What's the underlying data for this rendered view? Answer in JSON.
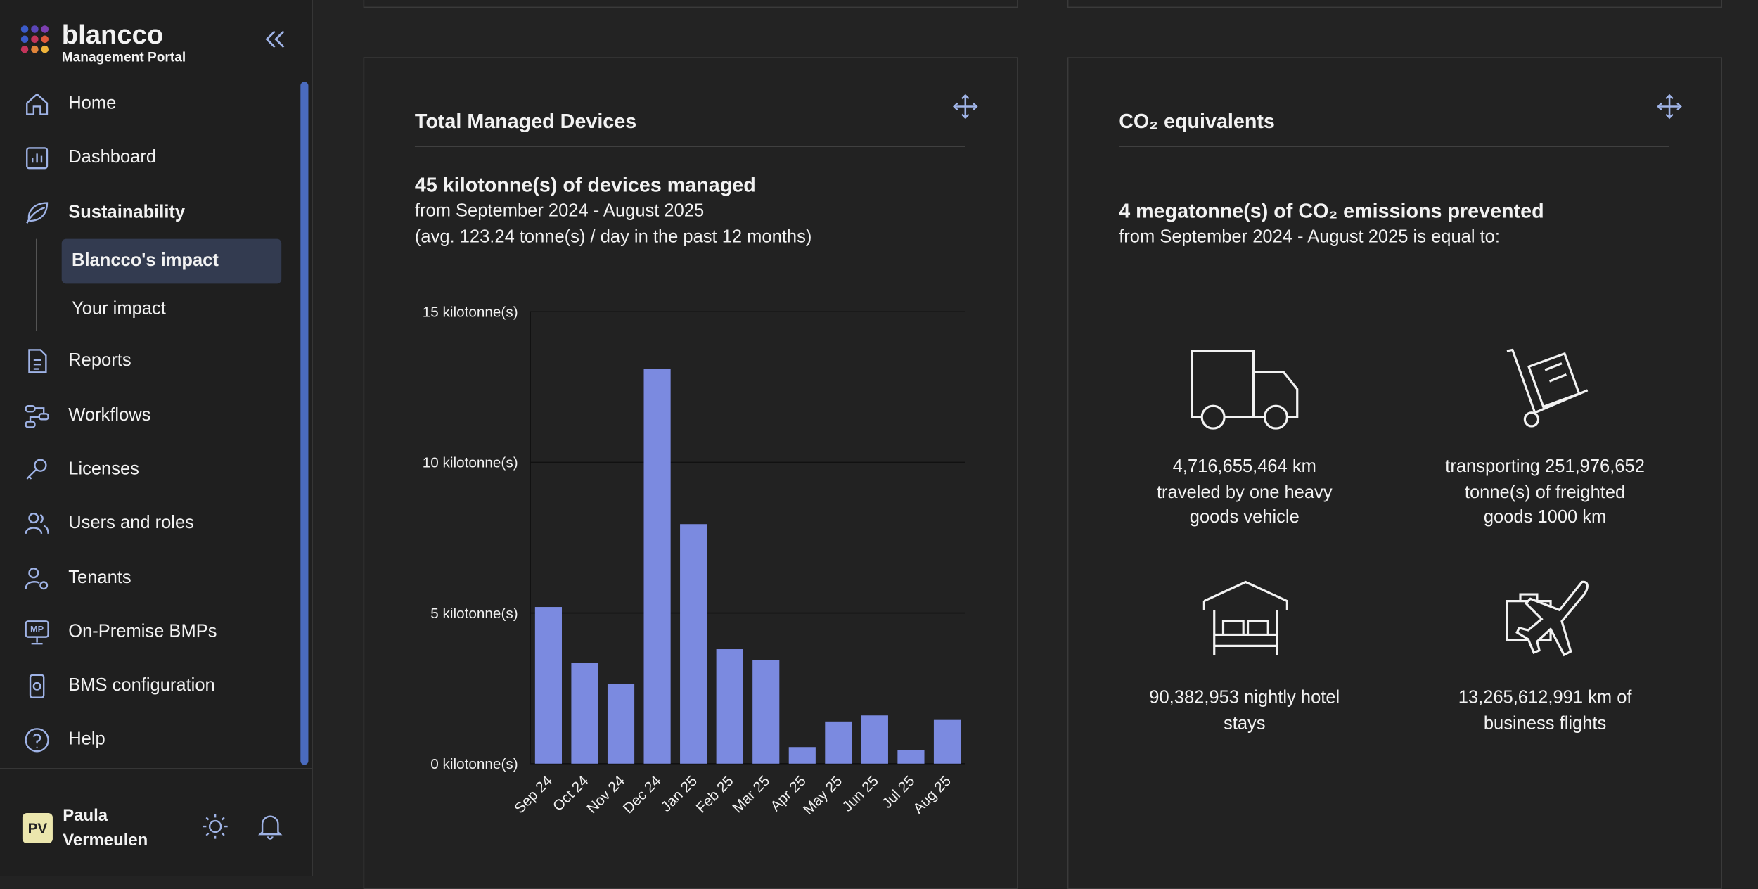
{
  "sidebar": {
    "brand": "blancco",
    "brand_subtitle": "Management Portal",
    "nav": [
      "Home",
      "Dashboard",
      "Sustainability",
      "Reports",
      "Workflows",
      "Licenses",
      "Users and roles",
      "Tenants",
      "On-Premise BMPs",
      "BMS configuration",
      "Help"
    ],
    "sub_nav": [
      "Blancco's impact",
      "Your impact"
    ]
  },
  "user": {
    "initials": "PV",
    "first_name": "Paula",
    "last_name": "Vermeulen"
  },
  "devices_panel": {
    "title": "Total Managed Devices",
    "headline": "45 kilotonne(s) of devices managed",
    "period": "from September 2024 - August 2025",
    "average": "(avg. 123.24 tonne(s) / day in the past 12 months)"
  },
  "co2_panel": {
    "title": "CO₂ equivalents",
    "headline": "4 megatonne(s) of CO₂ emissions prevented",
    "period": "from September 2024 - August 2025 is equal to:",
    "items": [
      [
        "4,716,655,464 km",
        "traveled by one heavy",
        "goods vehicle"
      ],
      [
        "transporting 251,976,652",
        "tonne(s) of freighted",
        "goods 1000 km"
      ],
      [
        "90,382,953 nightly hotel",
        "stays"
      ],
      [
        "13,265,612,991 km of",
        "business flights"
      ]
    ]
  },
  "chart_data": {
    "type": "bar",
    "categories": [
      "Sep 24",
      "Oct 24",
      "Nov 24",
      "Dec 24",
      "Jan 25",
      "Feb 25",
      "Mar 25",
      "Apr 25",
      "May 25",
      "Jun 25",
      "Jul 25",
      "Aug 25"
    ],
    "values": [
      5.2,
      3.35,
      2.65,
      13.1,
      7.95,
      3.8,
      3.45,
      0.55,
      1.4,
      1.6,
      0.45,
      1.45
    ],
    "color": "#7b8ae0",
    "ylim": [
      0,
      15
    ],
    "yticks": [
      {
        "value": 0,
        "label": "0 kilotonne(s)"
      },
      {
        "value": 5,
        "label": "5 kilotonne(s)"
      },
      {
        "value": 10,
        "label": "10 kilotonne(s)"
      },
      {
        "value": 15,
        "label": "15 kilotonne(s)"
      }
    ],
    "grid": true
  }
}
